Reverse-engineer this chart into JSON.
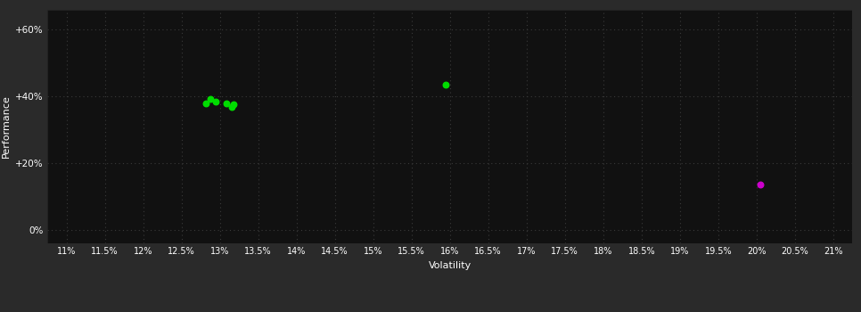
{
  "background_color": "#2a2a2a",
  "plot_bg_color": "#111111",
  "grid_color": "#3a3a3a",
  "text_color": "#ffffff",
  "xlabel": "Volatility",
  "ylabel": "Performance",
  "x_ticks": [
    11,
    11.5,
    12,
    12.5,
    13,
    13.5,
    14,
    14.5,
    15,
    15.5,
    16,
    16.5,
    17,
    17.5,
    18,
    18.5,
    19,
    19.5,
    20,
    20.5,
    21
  ],
  "y_ticks": [
    0,
    20,
    40,
    60
  ],
  "y_tick_labels": [
    "0%",
    "+20%",
    "+40%",
    "+60%"
  ],
  "xlim": [
    10.75,
    21.25
  ],
  "ylim": [
    -4,
    66
  ],
  "green_points": [
    [
      12.82,
      37.8
    ],
    [
      12.88,
      39.2
    ],
    [
      12.95,
      38.5
    ],
    [
      13.08,
      38.0
    ],
    [
      13.15,
      36.8
    ],
    [
      13.18,
      37.5
    ]
  ],
  "green_single": [
    15.95,
    43.5
  ],
  "magenta_point": [
    20.05,
    13.5
  ],
  "green_color": "#00dd00",
  "magenta_color": "#cc00cc",
  "point_size": 22
}
